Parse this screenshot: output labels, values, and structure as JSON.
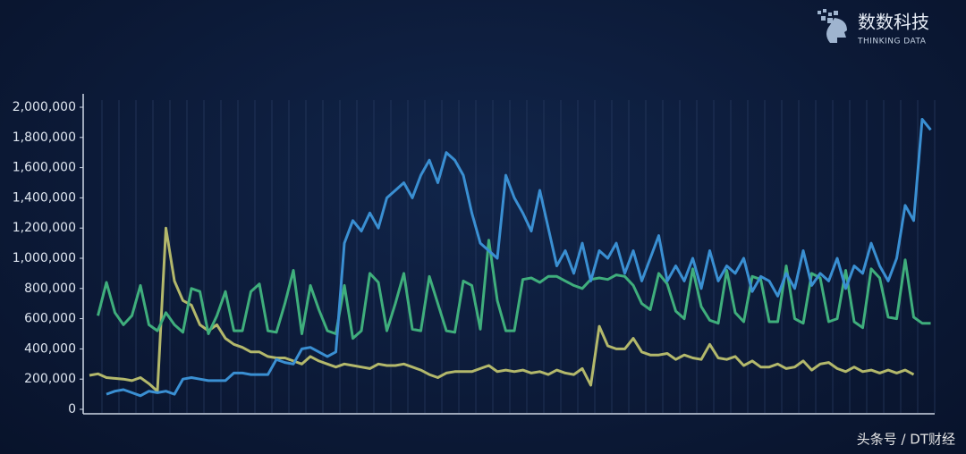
{
  "logo": {
    "name": "数数科技",
    "tagline": "THINKING DATA"
  },
  "watermark": "头条号 / DT财经",
  "chart_data": {
    "type": "line",
    "grid": true,
    "ylim": [
      0,
      2000000
    ],
    "yticks": [
      0,
      {
        "value": 200000,
        "label": "200,000"
      },
      {
        "value": 400000,
        "label": "400,000"
      },
      {
        "value": 600000,
        "label": "600,000"
      },
      {
        "value": 800000,
        "label": "800,000"
      },
      {
        "value": 1000000,
        "label": "1,000,000"
      },
      {
        "value": 1200000,
        "label": "1,200,000"
      },
      {
        "value": 1400000,
        "label": "1,400,000"
      },
      {
        "value": 1600000,
        "label": "1,600,000"
      },
      {
        "value": 1800000,
        "label": "1,800,000"
      },
      {
        "value": 2000000,
        "label": "2,000,000"
      }
    ],
    "categories": [
      null,
      null,
      null,
      null,
      null,
      null,
      null,
      null,
      null,
      null,
      null,
      null,
      null,
      null,
      null,
      null,
      null,
      null,
      null,
      null,
      null,
      null,
      null,
      null,
      null,
      null,
      null,
      null,
      null,
      null,
      null,
      null,
      null,
      null,
      null,
      null,
      null,
      null,
      null,
      null,
      null,
      null,
      null,
      null,
      null,
      null,
      null,
      null,
      null,
      null,
      null,
      null,
      null,
      null,
      null,
      null,
      null,
      null,
      null,
      null,
      null,
      null,
      null,
      null,
      null,
      null,
      null,
      null,
      null,
      null,
      null,
      null,
      null,
      null,
      null,
      null,
      null,
      null,
      null,
      null,
      null,
      null,
      null,
      null,
      null,
      null,
      null,
      null,
      null,
      null,
      null,
      null,
      null,
      null,
      null,
      null,
      null,
      null,
      null,
      null
    ],
    "series": [
      {
        "color": "#b3b86b",
        "values": [
          225000,
          235000,
          210000,
          205000,
          200000,
          190000,
          210000,
          170000,
          120000,
          1200000,
          850000,
          720000,
          690000,
          560000,
          520000,
          560000,
          470000,
          430000,
          410000,
          380000,
          380000,
          350000,
          340000,
          340000,
          320000,
          300000,
          350000,
          320000,
          300000,
          280000,
          300000,
          290000,
          280000,
          270000,
          300000,
          290000,
          290000,
          300000,
          280000,
          260000,
          230000,
          210000,
          240000,
          250000,
          250000,
          250000,
          270000,
          290000,
          250000,
          260000,
          250000,
          260000,
          240000,
          250000,
          230000,
          260000,
          240000,
          230000,
          270000,
          160000,
          550000,
          420000,
          400000,
          400000,
          470000,
          380000,
          360000,
          360000,
          370000,
          330000,
          360000,
          340000,
          330000,
          430000,
          340000,
          330000,
          350000,
          290000,
          320000,
          280000,
          280000,
          300000,
          270000,
          280000,
          320000,
          260000,
          300000,
          310000,
          270000,
          250000,
          280000,
          250000,
          260000,
          240000,
          260000,
          240000,
          260000,
          230000,
          null,
          null
        ]
      },
      {
        "color": "#3fae7c",
        "values": [
          null,
          620000,
          840000,
          640000,
          560000,
          620000,
          820000,
          560000,
          520000,
          640000,
          560000,
          510000,
          800000,
          780000,
          500000,
          620000,
          780000,
          520000,
          520000,
          780000,
          830000,
          520000,
          510000,
          700000,
          920000,
          500000,
          820000,
          660000,
          520000,
          500000,
          820000,
          470000,
          520000,
          900000,
          840000,
          520000,
          700000,
          900000,
          530000,
          520000,
          880000,
          700000,
          520000,
          510000,
          850000,
          820000,
          530000,
          1120000,
          720000,
          520000,
          520000,
          860000,
          870000,
          840000,
          880000,
          880000,
          850000,
          820000,
          800000,
          860000,
          870000,
          860000,
          890000,
          880000,
          820000,
          700000,
          660000,
          900000,
          830000,
          650000,
          600000,
          930000,
          680000,
          590000,
          570000,
          920000,
          640000,
          580000,
          880000,
          860000,
          580000,
          580000,
          950000,
          600000,
          570000,
          900000,
          870000,
          580000,
          600000,
          920000,
          580000,
          540000,
          930000,
          870000,
          610000,
          600000,
          990000,
          610000,
          570000,
          570000
        ]
      },
      {
        "color": "#3a8fd2",
        "values": [
          null,
          null,
          100000,
          120000,
          130000,
          110000,
          90000,
          120000,
          110000,
          120000,
          100000,
          200000,
          210000,
          200000,
          190000,
          190000,
          190000,
          240000,
          240000,
          230000,
          230000,
          230000,
          330000,
          310000,
          300000,
          400000,
          410000,
          380000,
          350000,
          380000,
          1100000,
          1250000,
          1180000,
          1300000,
          1200000,
          1400000,
          1450000,
          1500000,
          1400000,
          1550000,
          1650000,
          1500000,
          1700000,
          1650000,
          1550000,
          1300000,
          1100000,
          1050000,
          1000000,
          1550000,
          1400000,
          1300000,
          1180000,
          1450000,
          1200000,
          950000,
          1050000,
          900000,
          1100000,
          850000,
          1050000,
          1000000,
          1100000,
          900000,
          1050000,
          850000,
          1000000,
          1150000,
          850000,
          950000,
          850000,
          1000000,
          800000,
          1050000,
          850000,
          950000,
          900000,
          1000000,
          780000,
          880000,
          850000,
          750000,
          900000,
          800000,
          1050000,
          820000,
          900000,
          850000,
          1000000,
          800000,
          950000,
          900000,
          1100000,
          950000,
          850000,
          1000000,
          1350000,
          1250000,
          1920000,
          1850000
        ]
      }
    ]
  }
}
